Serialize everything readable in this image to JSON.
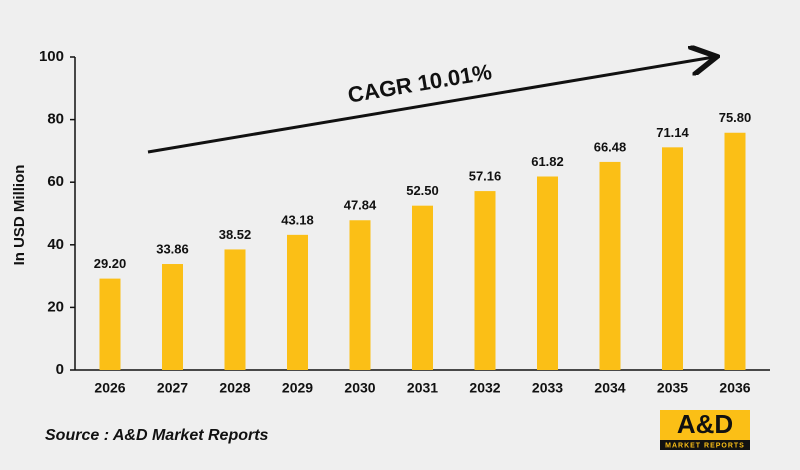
{
  "chart_data": {
    "type": "bar",
    "y_label": "In USD Million",
    "annotation": "CAGR 10.01%",
    "source": "Source : A&D Market Reports",
    "logo": {
      "name": "A&D",
      "tagline": "MARKET REPORTS"
    },
    "categories": [
      "2026",
      "2027",
      "2028",
      "2029",
      "2030",
      "2031",
      "2032",
      "2033",
      "2034",
      "2035",
      "2036"
    ],
    "values": [
      29.2,
      33.86,
      38.52,
      43.18,
      47.84,
      52.5,
      57.16,
      61.82,
      66.48,
      71.14,
      75.8
    ],
    "value_labels": [
      "29.20",
      "33.86",
      "38.52",
      "43.18",
      "47.84",
      "52.50",
      "57.16",
      "61.82",
      "66.48",
      "71.14",
      "75.80"
    ],
    "color": "#fbbf16",
    "ylim": [
      0,
      100
    ],
    "yticks": [
      0,
      20,
      40,
      60,
      80,
      100
    ],
    "grid": false
  }
}
